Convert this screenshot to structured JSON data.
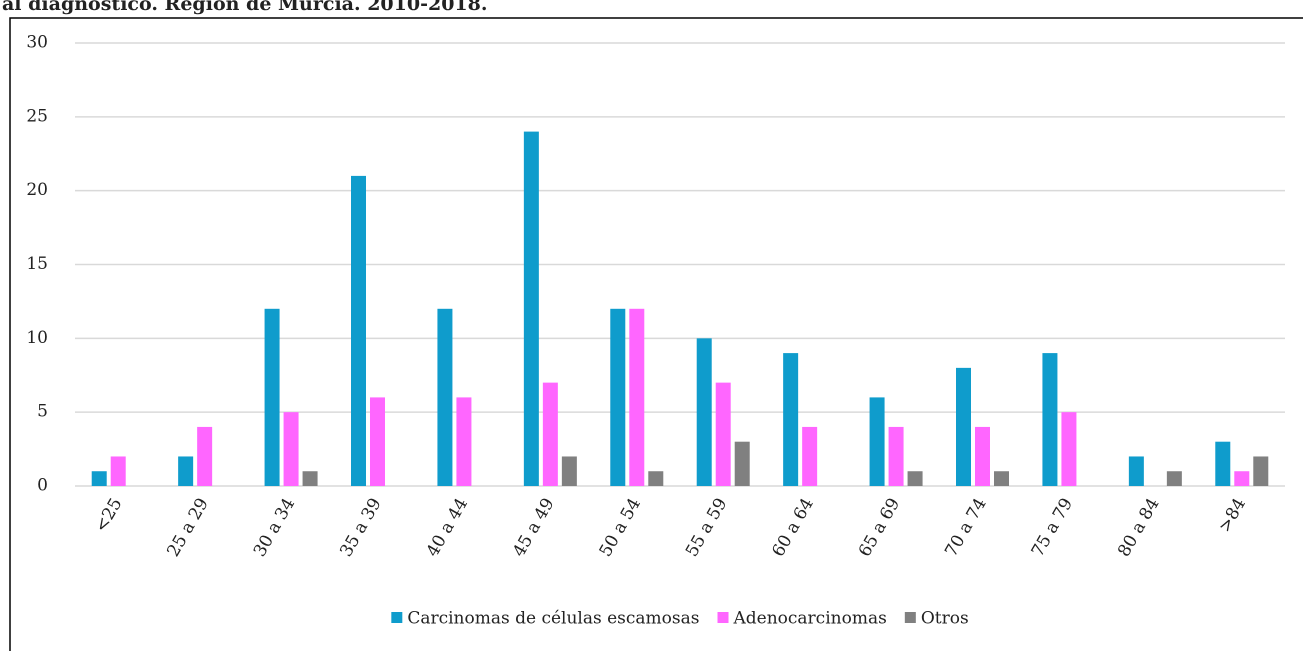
{
  "chart_data": {
    "type": "bar",
    "title": "al diagnóstico. Región de Murcia. 2010-2018.",
    "categories": [
      "<25",
      "25 a 29",
      "30 a 34",
      "35 a 39",
      "40 a 44",
      "45 a 49",
      "50 a 54",
      "55 a 59",
      "60 a 64",
      "65 a 69",
      "70 a 74",
      "75 a 79",
      "80 a 84",
      ">84"
    ],
    "series": [
      {
        "name": "Carcinomas de células escamosas",
        "color": "#0f9ccc",
        "values": [
          1,
          2,
          12,
          21,
          12,
          24,
          12,
          10,
          9,
          6,
          8,
          9,
          2,
          3
        ]
      },
      {
        "name": "Adenocarcinomas",
        "color": "#ff66ff",
        "values": [
          2,
          4,
          5,
          6,
          6,
          7,
          12,
          7,
          4,
          4,
          4,
          5,
          0,
          1
        ]
      },
      {
        "name": "Otros",
        "color": "#808080",
        "values": [
          0,
          0,
          1,
          0,
          0,
          2,
          1,
          3,
          0,
          1,
          1,
          0,
          1,
          2
        ]
      }
    ],
    "ylim": [
      0,
      30
    ],
    "yticks": [
      0,
      5,
      10,
      15,
      20,
      25,
      30
    ],
    "grid": true,
    "legend": "bottom"
  }
}
